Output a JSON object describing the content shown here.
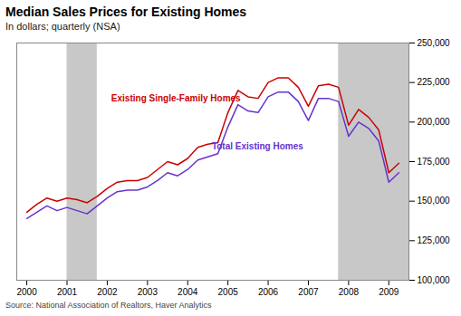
{
  "chart_data": {
    "type": "line",
    "title": "Median Sales Prices for Existing Homes",
    "subtitle": "In dollars; quarterly (NSA)",
    "source": "Source: National Association of Realtors, Haver Analytics",
    "x": [
      2000.0,
      2000.25,
      2000.5,
      2000.75,
      2001.0,
      2001.25,
      2001.5,
      2001.75,
      2002.0,
      2002.25,
      2002.5,
      2002.75,
      2003.0,
      2003.25,
      2003.5,
      2003.75,
      2004.0,
      2004.25,
      2004.5,
      2004.75,
      2005.0,
      2005.25,
      2005.5,
      2005.75,
      2006.0,
      2006.25,
      2006.5,
      2006.75,
      2007.0,
      2007.25,
      2007.5,
      2007.75,
      2008.0,
      2008.25,
      2008.5,
      2008.75,
      2009.0,
      2009.25
    ],
    "series": [
      {
        "name": "Existing Single-Family Homes",
        "color": "#cc0000",
        "label_x": 2002.1,
        "label_y": 213000,
        "values": [
          143000,
          148000,
          152000,
          150000,
          152000,
          151000,
          149000,
          153000,
          158000,
          162000,
          163000,
          163000,
          165000,
          170000,
          175000,
          173000,
          177000,
          184000,
          186000,
          187000,
          206000,
          220000,
          216000,
          215000,
          225000,
          228000,
          228000,
          222000,
          210000,
          223000,
          224000,
          222000,
          198000,
          208000,
          203000,
          195000,
          168000,
          174000
        ]
      },
      {
        "name": "Total Existing Homes",
        "color": "#6633cc",
        "label_x": 2004.6,
        "label_y": 183000,
        "values": [
          139000,
          143000,
          147000,
          144000,
          146000,
          144000,
          142000,
          147000,
          152000,
          156000,
          157000,
          157000,
          159000,
          163000,
          168000,
          166000,
          170000,
          176000,
          178000,
          180000,
          197000,
          211000,
          207000,
          206000,
          216000,
          219000,
          219000,
          213000,
          201000,
          215000,
          215000,
          213000,
          191000,
          200000,
          196000,
          188000,
          162000,
          168000
        ]
      }
    ],
    "recession_bands": [
      [
        2001.0,
        2001.75
      ],
      [
        2007.75,
        2009.5
      ]
    ],
    "xlim": [
      1999.75,
      2009.5
    ],
    "xticks": [
      2000,
      2001,
      2002,
      2003,
      2004,
      2005,
      2006,
      2007,
      2008,
      2009
    ],
    "ylim": [
      100000,
      250000
    ],
    "yticks": [
      {
        "value": 100000,
        "label": "100,000"
      },
      {
        "value": 125000,
        "label": "125,000"
      },
      {
        "value": 150000,
        "label": "150,000"
      },
      {
        "value": 175000,
        "label": "175,000"
      },
      {
        "value": 200000,
        "label": "200,000"
      },
      {
        "value": 225000,
        "label": "225,000"
      },
      {
        "value": 250000,
        "label": "250,000"
      }
    ],
    "grid": false
  }
}
